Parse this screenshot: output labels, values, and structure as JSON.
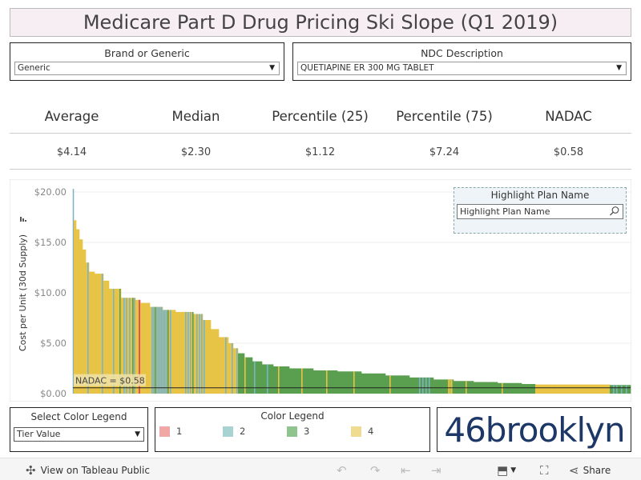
{
  "title": "Medicare Part D Drug Pricing Ski Slope (Q1 2019)",
  "filters": {
    "brand": {
      "label": "Brand or Generic",
      "value": "Generic"
    },
    "ndc": {
      "label": "NDC Description",
      "value": "QUETIAPINE ER 300 MG TABLET"
    }
  },
  "stats": {
    "headers": [
      "Average",
      "Median",
      "Percentile (25)",
      "Percentile (75)",
      "NADAC"
    ],
    "values": [
      "$4.14",
      "$2.30",
      "$1.12",
      "$7.24",
      "$0.58"
    ]
  },
  "highlight": {
    "title": "Highlight Plan Name",
    "placeholder": "Highlight Plan Name"
  },
  "select_legend": {
    "label": "Select Color Legend",
    "value": "Tier Value"
  },
  "color_legend": {
    "title": "Color Legend",
    "items": [
      {
        "label": "1",
        "color": "#f2a7a7"
      },
      {
        "label": "2",
        "color": "#a9d3d3"
      },
      {
        "label": "3",
        "color": "#8fc48f"
      },
      {
        "label": "4",
        "color": "#efdc91"
      }
    ]
  },
  "logo": "46brooklyn",
  "toolbar": {
    "view_label": "View on Tableau Public",
    "share_label": "Share"
  },
  "chart_data": {
    "type": "bar",
    "ylabel": "Cost per Unit (30d Supply)",
    "yticks": [
      "$0.00",
      "$5.00",
      "$10.00",
      "$15.00",
      "$20.00"
    ],
    "ylim": [
      0,
      20
    ],
    "grid": true,
    "reference_line": {
      "label": "NADAC = $0.58",
      "value": 0.58
    },
    "tier_colors": {
      "1": "#e05555",
      "2": "#79b4c7",
      "3": "#5a9e4f",
      "4": "#e8c446"
    },
    "segments": [
      {
        "from": 0,
        "to": 1,
        "value": 20.3,
        "tier": "2"
      },
      {
        "from": 1,
        "to": 4,
        "value": 17.2,
        "tier": "4"
      },
      {
        "from": 4,
        "to": 8,
        "value": 16.3,
        "tier": "4"
      },
      {
        "from": 8,
        "to": 12,
        "value": 15.3,
        "tier": "4"
      },
      {
        "from": 12,
        "to": 16,
        "value": 14.3,
        "tier": "4"
      },
      {
        "from": 16,
        "to": 20,
        "value": 13.0,
        "tier": "4"
      },
      {
        "from": 20,
        "to": 27,
        "value": 12.1,
        "tier": "4"
      },
      {
        "from": 27,
        "to": 38,
        "value": 11.9,
        "tier": "4"
      },
      {
        "from": 38,
        "to": 45,
        "value": 11.2,
        "tier": "4"
      },
      {
        "from": 45,
        "to": 60,
        "value": 10.4,
        "tier": "4"
      },
      {
        "from": 60,
        "to": 78,
        "value": 9.5,
        "tier": "4"
      },
      {
        "from": 78,
        "to": 82,
        "value": 9.3,
        "tier": "4"
      },
      {
        "from": 82,
        "to": 84,
        "value": 9.3,
        "tier": "1"
      },
      {
        "from": 84,
        "to": 96,
        "value": 9.0,
        "tier": "4"
      },
      {
        "from": 96,
        "to": 112,
        "value": 8.6,
        "tier": "4"
      },
      {
        "from": 112,
        "to": 128,
        "value": 8.3,
        "tier": "4"
      },
      {
        "from": 128,
        "to": 150,
        "value": 8.1,
        "tier": "4"
      },
      {
        "from": 150,
        "to": 162,
        "value": 7.9,
        "tier": "4"
      },
      {
        "from": 162,
        "to": 172,
        "value": 7.3,
        "tier": "4"
      },
      {
        "from": 172,
        "to": 182,
        "value": 6.4,
        "tier": "4"
      },
      {
        "from": 182,
        "to": 194,
        "value": 5.6,
        "tier": "4"
      },
      {
        "from": 194,
        "to": 200,
        "value": 5.0,
        "tier": "4"
      },
      {
        "from": 200,
        "to": 206,
        "value": 4.5,
        "tier": "4"
      },
      {
        "from": 206,
        "to": 214,
        "value": 4.0,
        "tier": "3"
      },
      {
        "from": 214,
        "to": 224,
        "value": 3.6,
        "tier": "3"
      },
      {
        "from": 224,
        "to": 236,
        "value": 3.2,
        "tier": "3"
      },
      {
        "from": 236,
        "to": 250,
        "value": 2.9,
        "tier": "3"
      },
      {
        "from": 250,
        "to": 270,
        "value": 2.7,
        "tier": "3"
      },
      {
        "from": 270,
        "to": 300,
        "value": 2.5,
        "tier": "3"
      },
      {
        "from": 300,
        "to": 330,
        "value": 2.3,
        "tier": "3"
      },
      {
        "from": 330,
        "to": 360,
        "value": 2.2,
        "tier": "3"
      },
      {
        "from": 360,
        "to": 390,
        "value": 2.0,
        "tier": "3"
      },
      {
        "from": 390,
        "to": 420,
        "value": 1.8,
        "tier": "3"
      },
      {
        "from": 420,
        "to": 450,
        "value": 1.6,
        "tier": "3"
      },
      {
        "from": 450,
        "to": 475,
        "value": 1.4,
        "tier": "3"
      },
      {
        "from": 475,
        "to": 500,
        "value": 1.25,
        "tier": "3"
      },
      {
        "from": 500,
        "to": 530,
        "value": 1.15,
        "tier": "3"
      },
      {
        "from": 530,
        "to": 560,
        "value": 1.05,
        "tier": "3"
      },
      {
        "from": 560,
        "to": 577,
        "value": 0.95,
        "tier": "3"
      },
      {
        "from": 577,
        "to": 670,
        "value": 0.9,
        "tier": "4"
      },
      {
        "from": 670,
        "to": 696,
        "value": 0.85,
        "tier": "3"
      }
    ],
    "stripes": [
      {
        "at": 18,
        "tier": "2"
      },
      {
        "at": 36,
        "tier": "2"
      },
      {
        "at": 50,
        "tier": "2"
      },
      {
        "at": 58,
        "tier": "3"
      },
      {
        "at": 63,
        "tier": "2"
      },
      {
        "at": 66,
        "tier": "2"
      },
      {
        "at": 70,
        "tier": "2"
      },
      {
        "at": 74,
        "tier": "3"
      },
      {
        "at": 76,
        "tier": "2"
      },
      {
        "at": 98,
        "tier": "2"
      },
      {
        "at": 100,
        "tier": "2"
      },
      {
        "at": 102,
        "tier": "3"
      },
      {
        "at": 104,
        "tier": "2"
      },
      {
        "at": 106,
        "tier": "2"
      },
      {
        "at": 108,
        "tier": "2"
      },
      {
        "at": 110,
        "tier": "2"
      },
      {
        "at": 112,
        "tier": "2"
      },
      {
        "at": 114,
        "tier": "2"
      },
      {
        "at": 116,
        "tier": "2"
      },
      {
        "at": 118,
        "tier": "3"
      },
      {
        "at": 121,
        "tier": "2"
      },
      {
        "at": 140,
        "tier": "2"
      },
      {
        "at": 143,
        "tier": "2"
      },
      {
        "at": 146,
        "tier": "2"
      },
      {
        "at": 149,
        "tier": "3"
      },
      {
        "at": 154,
        "tier": "2"
      },
      {
        "at": 157,
        "tier": "2"
      },
      {
        "at": 160,
        "tier": "2"
      },
      {
        "at": 163,
        "tier": "2"
      },
      {
        "at": 190,
        "tier": "2"
      },
      {
        "at": 198,
        "tier": "2"
      },
      {
        "at": 204,
        "tier": "2"
      },
      {
        "at": 214,
        "tier": "4"
      },
      {
        "at": 226,
        "tier": "2"
      },
      {
        "at": 242,
        "tier": "2"
      },
      {
        "at": 256,
        "tier": "4"
      },
      {
        "at": 285,
        "tier": "4"
      },
      {
        "at": 316,
        "tier": "4"
      },
      {
        "at": 350,
        "tier": "4"
      },
      {
        "at": 395,
        "tier": "4"
      },
      {
        "at": 432,
        "tier": "2"
      },
      {
        "at": 436,
        "tier": "2"
      },
      {
        "at": 440,
        "tier": "2"
      },
      {
        "at": 444,
        "tier": "2"
      },
      {
        "at": 468,
        "tier": "4"
      },
      {
        "at": 470,
        "tier": "4"
      },
      {
        "at": 472,
        "tier": "4"
      },
      {
        "at": 490,
        "tier": "4"
      },
      {
        "at": 535,
        "tier": "4"
      },
      {
        "at": 600,
        "tier": "4"
      },
      {
        "at": 674,
        "tier": "2"
      },
      {
        "at": 678,
        "tier": "2"
      },
      {
        "at": 684,
        "tier": "2"
      },
      {
        "at": 690,
        "tier": "2"
      }
    ]
  }
}
